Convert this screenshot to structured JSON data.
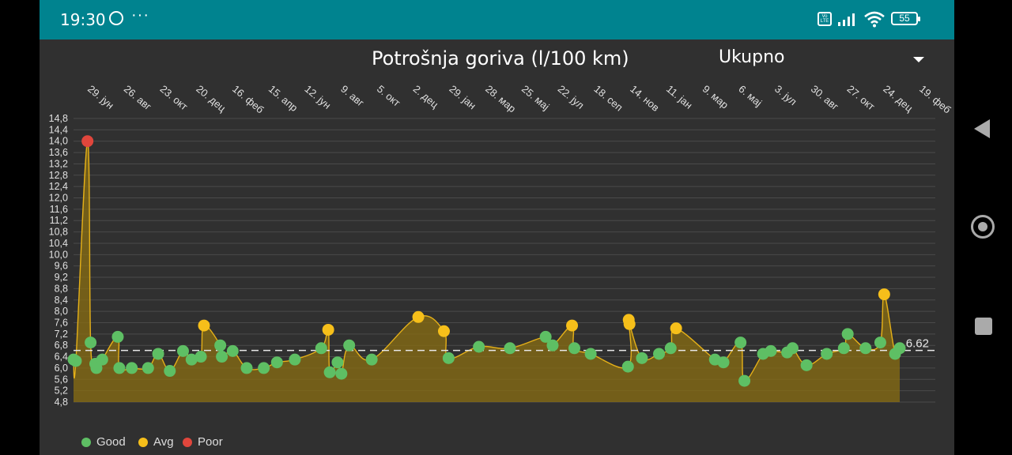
{
  "status_bar": {
    "time": "19:30",
    "dots": "···",
    "network": "Vo LTE",
    "battery": "55",
    "icons": [
      "viber-icon",
      "more-dots-icon",
      "volte-icon",
      "signal-icon",
      "wifi-icon",
      "battery-icon"
    ]
  },
  "header": {
    "title": "Potrošnja goriva (l/100 km)",
    "filter_value": "Ukupno"
  },
  "colors": {
    "good": "#5ebf64",
    "avg": "#f6bf1a",
    "poor": "#e0463c",
    "line": "#e5b018",
    "fill": "#8a6d12",
    "average_line": "#e8e8e8"
  },
  "legend": [
    {
      "label": "Good",
      "color": "#5ebf64"
    },
    {
      "label": "Avg",
      "color": "#f6bf1a"
    },
    {
      "label": "Poor",
      "color": "#e0463c"
    }
  ],
  "chart_data": {
    "type": "line",
    "ylim": [
      4.8,
      14.8
    ],
    "yticks": [
      "4,8",
      "5,2",
      "5,6",
      "6,0",
      "6,4",
      "6,8",
      "7,2",
      "7,6",
      "8,0",
      "8,4",
      "8,8",
      "9,2",
      "9,6",
      "10,0",
      "10,4",
      "10,8",
      "11,2",
      "11,6",
      "12,0",
      "12,4",
      "12,8",
      "13,2",
      "13,6",
      "14,0",
      "14,4",
      "14,8"
    ],
    "x_labels": [
      "29. јун",
      "26. авг",
      "23. окт",
      "20. дец",
      "16. феб",
      "15. апр",
      "12. јун",
      "9. авг",
      "5. окт",
      "2. дец",
      "29. јан",
      "28. мар",
      "25. мај",
      "22. јул",
      "18. сеп",
      "14. нов",
      "11. јан",
      "9. мар",
      "6. мај",
      "3. јул",
      "30. авг",
      "27. окт",
      "24. дец",
      "19. феб"
    ],
    "average": 6.62,
    "average_label": "6.62",
    "grid": true,
    "area_fill": true,
    "points": [
      [
        0.0,
        6.3,
        "good"
      ],
      [
        3.0,
        6.25,
        "good"
      ],
      [
        18.0,
        14.0,
        "poor"
      ],
      [
        22.0,
        6.9,
        "good"
      ],
      [
        28.0,
        6.15,
        "good"
      ],
      [
        29.5,
        6.0,
        "good"
      ],
      [
        37.0,
        6.3,
        "good"
      ],
      [
        57.0,
        7.1,
        "good"
      ],
      [
        59.0,
        6.0,
        "good"
      ],
      [
        75.0,
        6.0,
        "good"
      ],
      [
        96.0,
        6.0,
        "good"
      ],
      [
        109.0,
        6.5,
        "good"
      ],
      [
        124.0,
        5.9,
        "good"
      ],
      [
        141.0,
        6.6,
        "good"
      ],
      [
        152.0,
        6.3,
        "good"
      ],
      [
        164.0,
        6.4,
        "good"
      ],
      [
        168.0,
        7.5,
        "avg"
      ],
      [
        189.0,
        6.8,
        "good"
      ],
      [
        191.0,
        6.4,
        "good"
      ],
      [
        205.0,
        6.6,
        "good"
      ],
      [
        223.0,
        6.0,
        "good"
      ],
      [
        245.0,
        6.0,
        "good"
      ],
      [
        262.0,
        6.2,
        "good"
      ],
      [
        285.0,
        6.3,
        "good"
      ],
      [
        319.0,
        6.7,
        "good"
      ],
      [
        328.0,
        7.35,
        "avg"
      ],
      [
        330.0,
        5.85,
        "good"
      ],
      [
        340.0,
        6.2,
        "good"
      ],
      [
        345.0,
        5.8,
        "good"
      ],
      [
        355.0,
        6.8,
        "good"
      ],
      [
        384.0,
        6.3,
        "good"
      ],
      [
        444.0,
        7.8,
        "avg"
      ],
      [
        477.0,
        7.3,
        "avg"
      ],
      [
        483.0,
        6.35,
        "good"
      ],
      [
        522.0,
        6.75,
        "good"
      ],
      [
        562.0,
        6.7,
        "good"
      ],
      [
        608.0,
        7.1,
        "good"
      ],
      [
        617.0,
        6.8,
        "good"
      ],
      [
        642.0,
        7.5,
        "avg"
      ],
      [
        645.0,
        6.7,
        "good"
      ],
      [
        666.0,
        6.5,
        "good"
      ],
      [
        714.0,
        6.05,
        "good"
      ],
      [
        715.0,
        7.7,
        "avg"
      ],
      [
        716.0,
        7.55,
        "avg"
      ],
      [
        732.0,
        6.35,
        "good"
      ],
      [
        754.0,
        6.5,
        "good"
      ],
      [
        769.0,
        6.7,
        "good"
      ],
      [
        776.0,
        7.4,
        "avg"
      ],
      [
        826.0,
        6.3,
        "good"
      ],
      [
        837.0,
        6.2,
        "good"
      ],
      [
        859.0,
        6.9,
        "good"
      ],
      [
        864.0,
        5.55,
        "good"
      ],
      [
        888.0,
        6.5,
        "good"
      ],
      [
        898.0,
        6.6,
        "good"
      ],
      [
        919.0,
        6.55,
        "good"
      ],
      [
        926.0,
        6.7,
        "good"
      ],
      [
        944.0,
        6.1,
        "good"
      ],
      [
        970.0,
        6.5,
        "good"
      ],
      [
        992.0,
        6.7,
        "good"
      ],
      [
        997.0,
        7.2,
        "good"
      ],
      [
        1020.0,
        6.7,
        "good"
      ],
      [
        1039.0,
        6.9,
        "good"
      ],
      [
        1044.0,
        8.6,
        "avg"
      ],
      [
        1058.0,
        6.5,
        "good"
      ],
      [
        1064.0,
        6.7,
        "good"
      ]
    ]
  }
}
